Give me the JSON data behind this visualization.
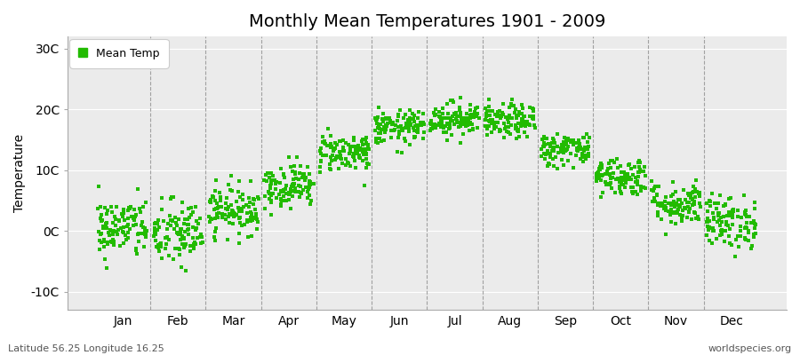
{
  "title": "Monthly Mean Temperatures 1901 - 2009",
  "ylabel": "Temperature",
  "bottom_left": "Latitude 56.25 Longitude 16.25",
  "bottom_right": "worldspecies.org",
  "legend_label": "Mean Temp",
  "dot_color": "#22bb00",
  "plot_bg_color": "#ebebeb",
  "fig_bg_color": "#ffffff",
  "yticks": [
    -10,
    0,
    10,
    20,
    30
  ],
  "ytick_labels": [
    "-10C",
    "0C",
    "10C",
    "20C",
    "30C"
  ],
  "ylim": [
    -13,
    32
  ],
  "xlim": [
    -0.5,
    12.5
  ],
  "months": [
    "Jan",
    "Feb",
    "Mar",
    "Apr",
    "May",
    "Jun",
    "Jul",
    "Aug",
    "Sep",
    "Oct",
    "Nov",
    "Dec"
  ],
  "mean_temps": [
    0.5,
    -0.5,
    3.5,
    7.5,
    13.0,
    17.0,
    18.5,
    18.0,
    13.5,
    9.0,
    4.5,
    1.5
  ],
  "std_temps": [
    2.5,
    2.8,
    2.0,
    1.8,
    1.6,
    1.4,
    1.4,
    1.4,
    1.4,
    1.6,
    1.8,
    2.2
  ],
  "n_years": 109,
  "seed": 42,
  "title_fontsize": 14,
  "axis_label_fontsize": 10,
  "tick_fontsize": 10,
  "legend_fontsize": 9,
  "bottom_fontsize": 8,
  "dot_size": 5,
  "vline_color": "#999999",
  "vline_lw": 0.8,
  "hgrid_color": "#ffffff",
  "hgrid_lw": 0.8,
  "spine_color": "#aaaaaa",
  "spine_lw": 0.8
}
